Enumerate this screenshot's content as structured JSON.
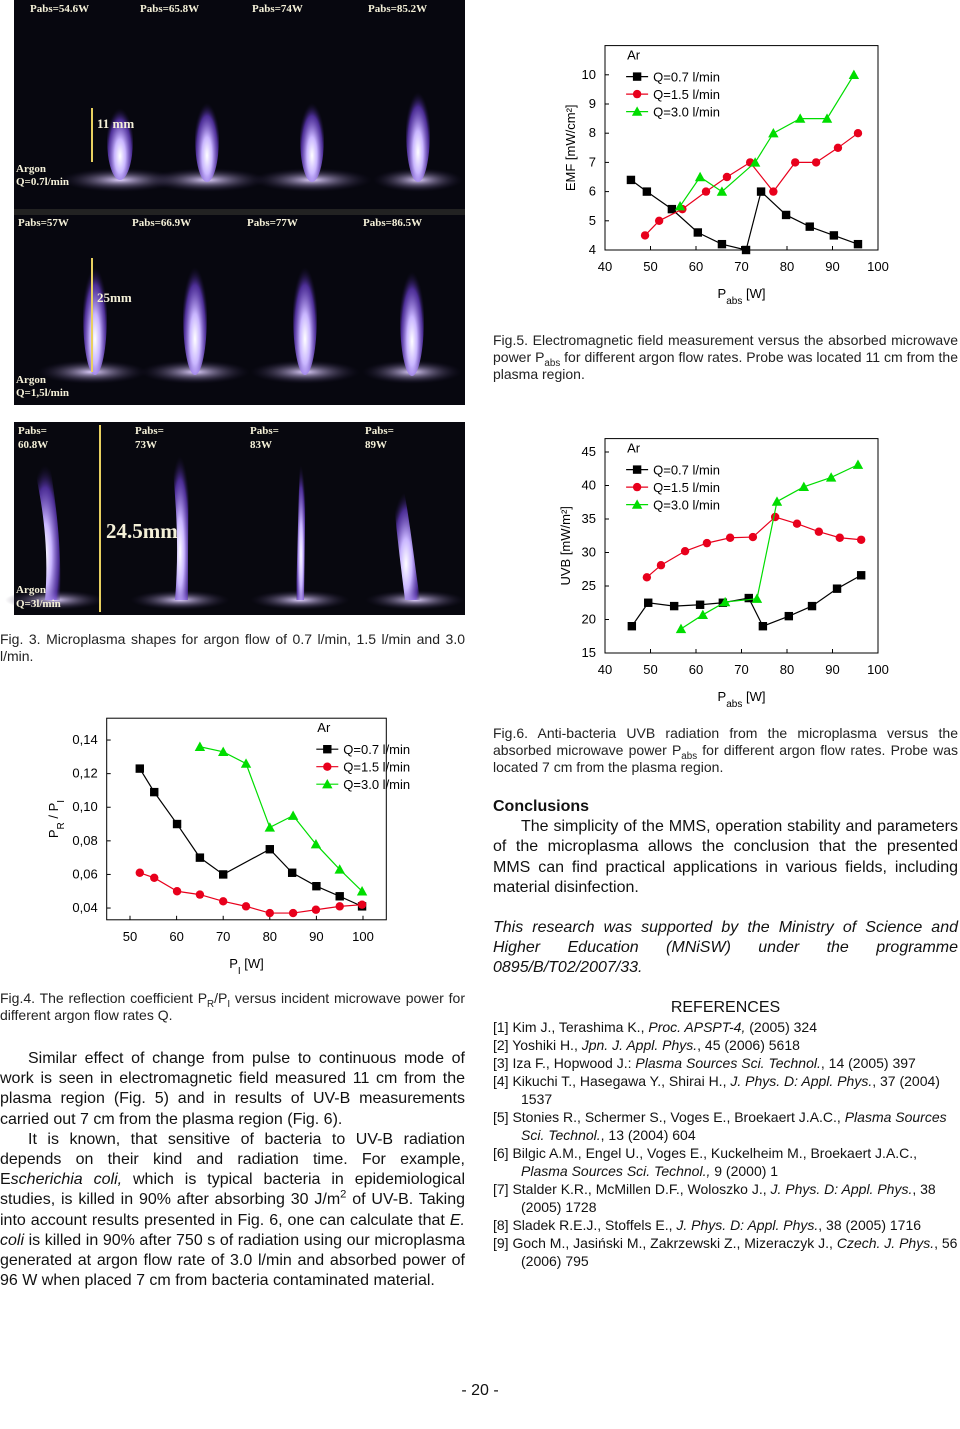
{
  "chart_data": [
    {
      "type": "line",
      "xlabel": [
        "P",
        "abs",
        " [W]"
      ],
      "ylabel": "EMF [mW/cm²]",
      "xlim": [
        40,
        100
      ],
      "ylim": [
        4,
        11
      ],
      "xticks": [
        40,
        50,
        60,
        70,
        80,
        90,
        100
      ],
      "yticks": [
        4,
        5,
        6,
        7,
        8,
        9,
        10
      ],
      "legend": "upper left",
      "legend_title": "Ar",
      "series": [
        {
          "name": "Q=0.7 l/min",
          "color": "#000000",
          "marker": "square",
          "x": [
            45.7,
            49.2,
            54.7,
            60.4,
            65.7,
            71,
            74.3,
            79.8,
            85,
            90.3,
            95.6
          ],
          "values": [
            6.4,
            6.0,
            5.4,
            4.6,
            4.2,
            4.0,
            6.0,
            5.2,
            4.8,
            4.5,
            4.2
          ]
        },
        {
          "name": "Q=1.5 l/min",
          "color": "#e8001c",
          "marker": "circle",
          "x": [
            48.8,
            51.9,
            57,
            62.2,
            66.8,
            71.9,
            77,
            81.8,
            86.4,
            91.2,
            95.6
          ],
          "values": [
            4.5,
            5.0,
            5.4,
            6.0,
            6.5,
            7.0,
            6.0,
            7.0,
            7.0,
            7.5,
            8.0
          ]
        },
        {
          "name": "Q=3.0 l/min",
          "color": "#00dd00",
          "marker": "triangle",
          "x": [
            56.5,
            60.9,
            65.7,
            73,
            77,
            82.9,
            88.8,
            94.7
          ],
          "values": [
            5.5,
            6.5,
            6.0,
            7.0,
            8.0,
            8.5,
            8.5,
            10.0
          ]
        }
      ]
    },
    {
      "type": "line",
      "xlabel": [
        "P",
        "abs",
        " [W]"
      ],
      "ylabel": "UVB [mW/m²]",
      "xlim": [
        40,
        100
      ],
      "ylim": [
        15,
        47
      ],
      "xticks": [
        40,
        50,
        60,
        70,
        80,
        90,
        100
      ],
      "yticks": [
        15,
        20,
        25,
        30,
        35,
        40,
        45
      ],
      "legend": "upper left",
      "legend_title": "Ar",
      "series": [
        {
          "name": "Q=0.7 l/min",
          "color": "#000000",
          "marker": "square",
          "x": [
            45.9,
            49.5,
            55.2,
            60.9,
            65.9,
            71.6,
            74.7,
            80.4,
            85.5,
            91,
            96.3
          ],
          "values": [
            19.0,
            22.5,
            22.0,
            22.2,
            22.5,
            23.2,
            19.0,
            20.5,
            22.0,
            24.6,
            26.6
          ]
        },
        {
          "name": "Q=1.5 l/min",
          "color": "#e8001c",
          "marker": "circle",
          "x": [
            49.2,
            52.3,
            57.6,
            62.4,
            67.5,
            72.5,
            77.4,
            82.2,
            87,
            91.6,
            96.3
          ],
          "values": [
            26.3,
            28.1,
            30.2,
            31.4,
            32.2,
            32.3,
            35.3,
            34.3,
            33.1,
            32.2,
            31.9
          ]
        },
        {
          "name": "Q=3.0 l/min",
          "color": "#00dd00",
          "marker": "triangle",
          "x": [
            56.7,
            61.5,
            66.4,
            73.4,
            77.8,
            83.7,
            89.7,
            95.6
          ],
          "values": [
            18.6,
            20.7,
            22.6,
            23.1,
            37.6,
            39.8,
            41.2,
            43.1
          ]
        }
      ]
    },
    {
      "type": "line",
      "xlabel": [
        "P",
        "I",
        " [W]"
      ],
      "ylabel": [
        "P",
        "R",
        " / P",
        "I"
      ],
      "xlim": [
        45,
        105
      ],
      "ylim": [
        0.033,
        0.153
      ],
      "xticks": [
        50,
        60,
        70,
        80,
        90,
        100
      ],
      "yticks": [
        {
          "value": 0.04,
          "label": "0,04"
        },
        {
          "value": 0.06,
          "label": "0,06"
        },
        {
          "value": 0.08,
          "label": "0,08"
        },
        {
          "value": 0.1,
          "label": "0,10"
        },
        {
          "value": 0.12,
          "label": "0,12"
        },
        {
          "value": 0.14,
          "label": "0,14"
        }
      ],
      "legend": "upper right",
      "legend_title": "Ar",
      "series": [
        {
          "name": "Q=0.7 l/min",
          "color": "#000000",
          "marker": "square",
          "x": [
            52.1,
            55.2,
            60.1,
            65,
            70,
            80,
            84.8,
            90,
            95,
            99.8
          ],
          "values": [
            0.123,
            0.109,
            0.09,
            0.07,
            0.06,
            0.075,
            0.061,
            0.053,
            0.047,
            0.041
          ]
        },
        {
          "name": "Q=1.5 l/min",
          "color": "#e8001c",
          "marker": "circle",
          "x": [
            52.1,
            55.2,
            60.1,
            65,
            70,
            74.9,
            80,
            85,
            89.9,
            95,
            99.8
          ],
          "values": [
            0.061,
            0.058,
            0.05,
            0.048,
            0.044,
            0.041,
            0.037,
            0.037,
            0.039,
            0.041,
            0.042
          ]
        },
        {
          "name": "Q=3.0 l/min",
          "color": "#00dd00",
          "marker": "triangle",
          "x": [
            65,
            70,
            74.9,
            80,
            85,
            89.9,
            95,
            99.8
          ],
          "values": [
            0.136,
            0.133,
            0.126,
            0.088,
            0.095,
            0.078,
            0.063,
            0.05
          ]
        }
      ]
    }
  ],
  "photo_fig5": {
    "row1": [
      "Pabs=54.6W",
      "Pabs=65.8W",
      "Pabs=74W",
      "Pabs=85.2W"
    ],
    "row1_height": "11 mm",
    "row1_argon": [
      "Argon",
      "Q=0.7l/min"
    ],
    "row2": [
      "Pabs=57W",
      "Pabs=66.9W",
      "Pabs=77W",
      "Pabs=86.5W"
    ],
    "row2_height": "25mm",
    "row2_argon": [
      "Argon",
      "Q=1,5l/min"
    ]
  },
  "photo_fig3": {
    "labels": [
      [
        "Pabs=",
        "60.8W"
      ],
      [
        "Pabs=",
        "73W"
      ],
      [
        "Pabs=",
        "83W"
      ],
      [
        "Pabs=",
        "89W"
      ]
    ],
    "height": "24.5mm",
    "argon": [
      "Argon",
      "Q=3l/min"
    ]
  },
  "fig5_caption": [
    "Fig.5. Electromagnetic field measurement versus the absorbed microwave power P",
    "abs",
    " for different argon flow rates. Probe was located 11 cm from the plasma region."
  ],
  "fig3_caption": "Fig. 3. Microplasma shapes for argon flow of 0.7 l/min, 1.5 l/min and 3.0 l/min.",
  "fig6_caption": [
    "Fig.6. Anti-bacteria UVB radiation from the microplasma versus the absorbed microwave power P",
    "abs",
    " for different argon flow rates. Probe was located 7 cm from the plasma region."
  ],
  "fig4_caption": [
    "Fig.4. The reflection coefficient P",
    "R",
    "/P",
    "I",
    " versus incident microwave power for different argon flow rates Q."
  ],
  "body": [
    "Similar effect of change from pulse to continuous mode of work is seen in electromagnetic field measured 11 cm from the plasma region (Fig. 5) and in results of UV-B measurements carried out 7 cm from the plasma region (Fig. 6).",
    [
      "It is known, that sensitive of bacteria to UV-B radiation depends on their kind and radiation time. For example, E",
      "scherichia coli,",
      " which is typical bacteria in epidemiological studies, is killed in 90% after absorbing 30 J/m",
      "2",
      " of UV-B. Taking into account results presented in Fig. 6, one can calculate that ",
      "E. coli",
      " is killed in 90% after 750 s of radiation using our microplasma generated at argon flow rate of 3.0 l/min and absorbed power of 96 W when placed 7 cm from bacteria contaminated material."
    ]
  ],
  "conclusions": {
    "heading": "Conclusions",
    "text": "The simplicity of the MMS, operation stability and parameters of the microplasma allows the conclusion that the presented MMS can find practical applications in various fields, including material disinfection."
  },
  "acknowledgment": "This research was supported by the Ministry of Science and Higher Education (MNiSW) under the programme 0895/B/T02/2007/33.",
  "references": {
    "heading": "REFERENCES",
    "items": [
      [
        "[1] Kim J., Terashima K., ",
        "Proc. APSPT-4,",
        " (2005) 324"
      ],
      [
        "[2] Yoshiki H., ",
        "Jpn. J. Appl. Phys.",
        ", 45 (2006) 5618"
      ],
      [
        "[3] Iza F., Hopwood J.: ",
        "Plasma Sources Sci. Technol.",
        ", 14 (2005) 397"
      ],
      [
        "[4] Kikuchi T., Hasegawa Y., Shirai H., ",
        "J. Phys. D: Appl. Phys.",
        ", 37 (2004) 1537"
      ],
      [
        "[5] Stonies R., Schermer S., Voges E., Broekaert J.A.C., ",
        "Plasma Sources Sci. Technol.",
        ", 13 (2004) 604"
      ],
      [
        "[6] Bilgic A.M., Engel U., Voges E., Kuckelheim M., Broekaert J.A.C., ",
        "Plasma Sources Sci. Technol.,",
        " 9 (2000) 1"
      ],
      [
        "[7] Stalder K.R., McMillen D.F., Woloszko J., ",
        "J. Phys. D: Appl. Phys.",
        ", 38 (2005) 1728"
      ],
      [
        "[8] Sladek R.E.J., Stoffels E., ",
        "J. Phys. D: Appl. Phys.",
        ", 38 (2005) 1716"
      ],
      [
        "[9] Goch M., Jasiński M., Zakrzewski Z., Mizeraczyk J., ",
        "Czech. J. Phys.",
        ", 56 (2006) 795"
      ]
    ]
  },
  "page_number": "- 20 -"
}
